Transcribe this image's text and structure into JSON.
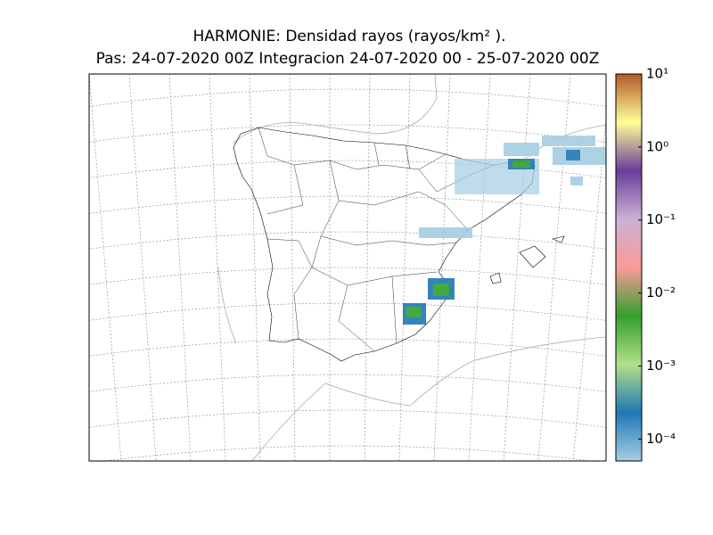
{
  "title": [
    "HARMONIE: Densidad rayos  (rayos/km² ).",
    "Pas: 24-07-2020 00Z Integracion 24-07-2020 00 - 25-07-2020 00Z"
  ],
  "colorbar": {
    "scale": "log",
    "lim": [
      5e-05,
      10
    ],
    "ticks": [
      {
        "value": 10,
        "label": "10¹"
      },
      {
        "value": 1,
        "label": "10⁰"
      },
      {
        "value": 0.1,
        "label": "10⁻¹"
      },
      {
        "value": 0.01,
        "label": "10⁻²"
      },
      {
        "value": 0.001,
        "label": "10⁻³"
      },
      {
        "value": 0.0001,
        "label": "10⁻⁴"
      }
    ],
    "colors": [
      "#a6cee3",
      "#1f78b4",
      "#b2df8a",
      "#33a02c",
      "#fb9a99",
      "#cab2d6",
      "#6a3d9a",
      "#ffff99",
      "#b15928"
    ]
  }
}
